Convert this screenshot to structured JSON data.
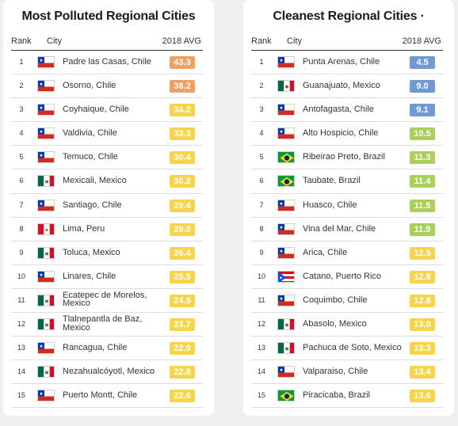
{
  "panels": [
    {
      "title": "Most Polluted Regional Cities",
      "columns": {
        "rank": "Rank",
        "city": "City",
        "avg": "2018 AVG"
      },
      "rows": [
        {
          "rank": "1",
          "city": "Padre las Casas, Chile",
          "flag": "chile-flag-icon",
          "value": "43.3",
          "color": "#f0a060"
        },
        {
          "rank": "2",
          "city": "Osorno, Chile",
          "flag": "chile-flag-icon",
          "value": "38.2",
          "color": "#f0a060"
        },
        {
          "rank": "3",
          "city": "Coyhaique, Chile",
          "flag": "chile-flag-icon",
          "value": "34.2",
          "color": "#f7d44c"
        },
        {
          "rank": "4",
          "city": "Valdivia, Chile",
          "flag": "chile-flag-icon",
          "value": "33.3",
          "color": "#f7d44c"
        },
        {
          "rank": "5",
          "city": "Temuco, Chile",
          "flag": "chile-flag-icon",
          "value": "30.4",
          "color": "#f7d44c"
        },
        {
          "rank": "6",
          "city": "Mexicali, Mexico",
          "flag": "mexico-flag-icon",
          "value": "30.2",
          "color": "#f7d44c"
        },
        {
          "rank": "7",
          "city": "Santiago, Chile",
          "flag": "chile-flag-icon",
          "value": "29.4",
          "color": "#f7d44c"
        },
        {
          "rank": "8",
          "city": "Lima, Peru",
          "flag": "peru-flag-icon",
          "value": "28.0",
          "color": "#f7d44c"
        },
        {
          "rank": "9",
          "city": "Toluca, Mexico",
          "flag": "mexico-flag-icon",
          "value": "26.4",
          "color": "#f7d44c"
        },
        {
          "rank": "10",
          "city": "Linares, Chile",
          "flag": "chile-flag-icon",
          "value": "25.5",
          "color": "#f7d44c"
        },
        {
          "rank": "11",
          "city": "Ecatepec de Morelos, Mexico",
          "flag": "mexico-flag-icon",
          "value": "24.9",
          "color": "#f7d44c"
        },
        {
          "rank": "12",
          "city": "Tlalnepantla de Baz, Mexico",
          "flag": "mexico-flag-icon",
          "value": "23.7",
          "color": "#f7d44c"
        },
        {
          "rank": "13",
          "city": "Rancagua, Chile",
          "flag": "chile-flag-icon",
          "value": "22.9",
          "color": "#f7d44c"
        },
        {
          "rank": "14",
          "city": "Nezahualcóyotl, Mexico",
          "flag": "mexico-flag-icon",
          "value": "22.8",
          "color": "#f7d44c"
        },
        {
          "rank": "15",
          "city": "Puerto Montt, Chile",
          "flag": "chile-flag-icon",
          "value": "22.6",
          "color": "#f7d44c"
        }
      ]
    },
    {
      "title": "Cleanest Regional Cities ·",
      "columns": {
        "rank": "Rank",
        "city": "City",
        "avg": "2018 AVG"
      },
      "rows": [
        {
          "rank": "1",
          "city": "Punta Arenas, Chile",
          "flag": "chile-flag-icon",
          "value": "4.5",
          "color": "#6f9ad6"
        },
        {
          "rank": "2",
          "city": "Guanajuato, Mexico",
          "flag": "mexico-flag-icon",
          "value": "9.0",
          "color": "#6f9ad6"
        },
        {
          "rank": "3",
          "city": "Antofagasta, Chile",
          "flag": "chile-flag-icon",
          "value": "9.1",
          "color": "#6f9ad6"
        },
        {
          "rank": "4",
          "city": "Alto Hospicio, Chile",
          "flag": "chile-flag-icon",
          "value": "10.5",
          "color": "#a8d05a"
        },
        {
          "rank": "5",
          "city": "Ribeirao Preto, Brazil",
          "flag": "brazil-flag-icon",
          "value": "11.3",
          "color": "#a8d05a"
        },
        {
          "rank": "6",
          "city": "Taubate, Brazil",
          "flag": "brazil-flag-icon",
          "value": "11.4",
          "color": "#a8d05a"
        },
        {
          "rank": "7",
          "city": "Huasco, Chile",
          "flag": "chile-flag-icon",
          "value": "11.5",
          "color": "#a8d05a"
        },
        {
          "rank": "8",
          "city": "Vina del Mar, Chile",
          "flag": "chile-flag-icon",
          "value": "11.9",
          "color": "#a8d05a"
        },
        {
          "rank": "9",
          "city": "Arica, Chile",
          "flag": "chile-flag-icon",
          "value": "12.5",
          "color": "#f7d44c"
        },
        {
          "rank": "10",
          "city": "Catano, Puerto Rico",
          "flag": "puerto-rico-flag-icon",
          "value": "12.8",
          "color": "#f7d44c"
        },
        {
          "rank": "11",
          "city": "Coquimbo, Chile",
          "flag": "chile-flag-icon",
          "value": "12.8",
          "color": "#f7d44c"
        },
        {
          "rank": "12",
          "city": "Abasolo, Mexico",
          "flag": "mexico-flag-icon",
          "value": "13.0",
          "color": "#f7d44c"
        },
        {
          "rank": "13",
          "city": "Pachuca de Soto, Mexico",
          "flag": "mexico-flag-icon",
          "value": "13.3",
          "color": "#f7d44c"
        },
        {
          "rank": "14",
          "city": "Valparaiso, Chile",
          "flag": "chile-flag-icon",
          "value": "13.4",
          "color": "#f7d44c"
        },
        {
          "rank": "15",
          "city": "Piracicaba, Brazil",
          "flag": "brazil-flag-icon",
          "value": "13.6",
          "color": "#f7d44c"
        }
      ]
    }
  ]
}
